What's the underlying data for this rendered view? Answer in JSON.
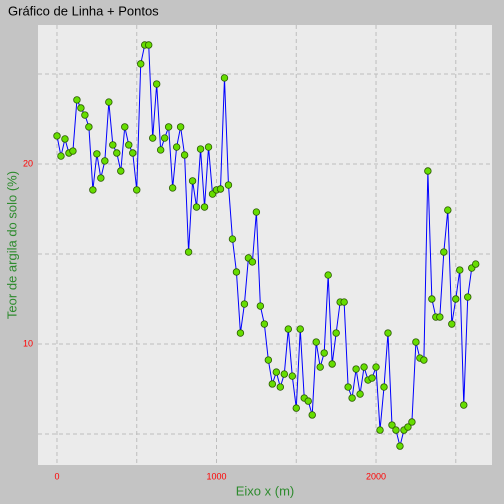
{
  "chart_data": {
    "type": "line",
    "title": "Gráfico de Linha + Pontos",
    "x_label": "Eixo x (m)",
    "y_label": "Teor de argila do solo (%)",
    "x": [
      0,
      25,
      50,
      75,
      100,
      125,
      150,
      175,
      200,
      225,
      250,
      275,
      300,
      325,
      350,
      375,
      400,
      425,
      450,
      475,
      500,
      525,
      550,
      575,
      600,
      625,
      650,
      675,
      700,
      725,
      750,
      775,
      800,
      825,
      850,
      875,
      900,
      925,
      950,
      975,
      1000,
      1025,
      1050,
      1075,
      1100,
      1125,
      1150,
      1175,
      1200,
      1225,
      1250,
      1275,
      1300,
      1325,
      1350,
      1375,
      1400,
      1425,
      1450,
      1475,
      1500,
      1525,
      1550,
      1575,
      1600,
      1625,
      1650,
      1675,
      1700,
      1725,
      1750,
      1775,
      1800,
      1825,
      1850,
      1875,
      1900,
      1925,
      1950,
      1975,
      2000,
      2025,
      2050,
      2075,
      2100,
      2125,
      2150,
      2175,
      2200,
      2225,
      2250,
      2275,
      2300,
      2325,
      2350,
      2375,
      2400,
      2425,
      2450,
      2475,
      2500,
      2525,
      2550,
      2575,
      2600,
      2625
    ],
    "series": [
      {
        "color": "#0000ff",
        "marker_color": "#66dd00",
        "values": [
          21.56,
          20.44,
          21.39,
          20.61,
          20.72,
          23.56,
          23.11,
          22.72,
          22.06,
          18.56,
          20.56,
          19.22,
          20.17,
          23.44,
          21.06,
          20.61,
          19.61,
          22.06,
          21.06,
          20.61,
          18.56,
          25.56,
          26.61,
          26.61,
          21.44,
          24.44,
          20.78,
          21.44,
          22.06,
          18.67,
          20.94,
          22.06,
          20.5,
          15.11,
          19.06,
          17.61,
          20.83,
          17.61,
          20.94,
          18.33,
          18.56,
          18.61,
          24.78,
          18.83,
          15.83,
          14.0,
          10.61,
          12.22,
          14.78,
          14.56,
          17.33,
          12.11,
          11.11,
          9.11,
          7.78,
          8.44,
          7.61,
          8.33,
          10.83,
          8.22,
          6.44,
          10.83,
          7.0,
          6.83,
          6.06,
          10.11,
          8.72,
          9.5,
          13.83,
          8.89,
          10.61,
          12.33,
          12.33,
          7.61,
          7.0,
          8.61,
          7.22,
          8.72,
          8.0,
          8.11,
          8.72,
          5.22,
          7.61,
          10.61,
          5.5,
          5.22,
          4.33,
          5.22,
          5.39,
          5.67,
          10.11,
          9.22,
          9.11,
          19.61,
          12.5,
          11.5,
          11.5,
          15.11,
          17.44,
          11.11,
          12.5,
          14.11,
          6.61,
          12.61,
          14.22,
          14.44
        ]
      }
    ],
    "xlim": [
      -119,
      2727
    ],
    "ylim": [
      3.28,
      27.72
    ],
    "xticks": [
      0,
      1000,
      2000
    ],
    "yticks": [
      10,
      20
    ],
    "xminor": [
      500,
      1500,
      2500
    ],
    "yminor": [
      5,
      15,
      25
    ],
    "grid": true
  }
}
